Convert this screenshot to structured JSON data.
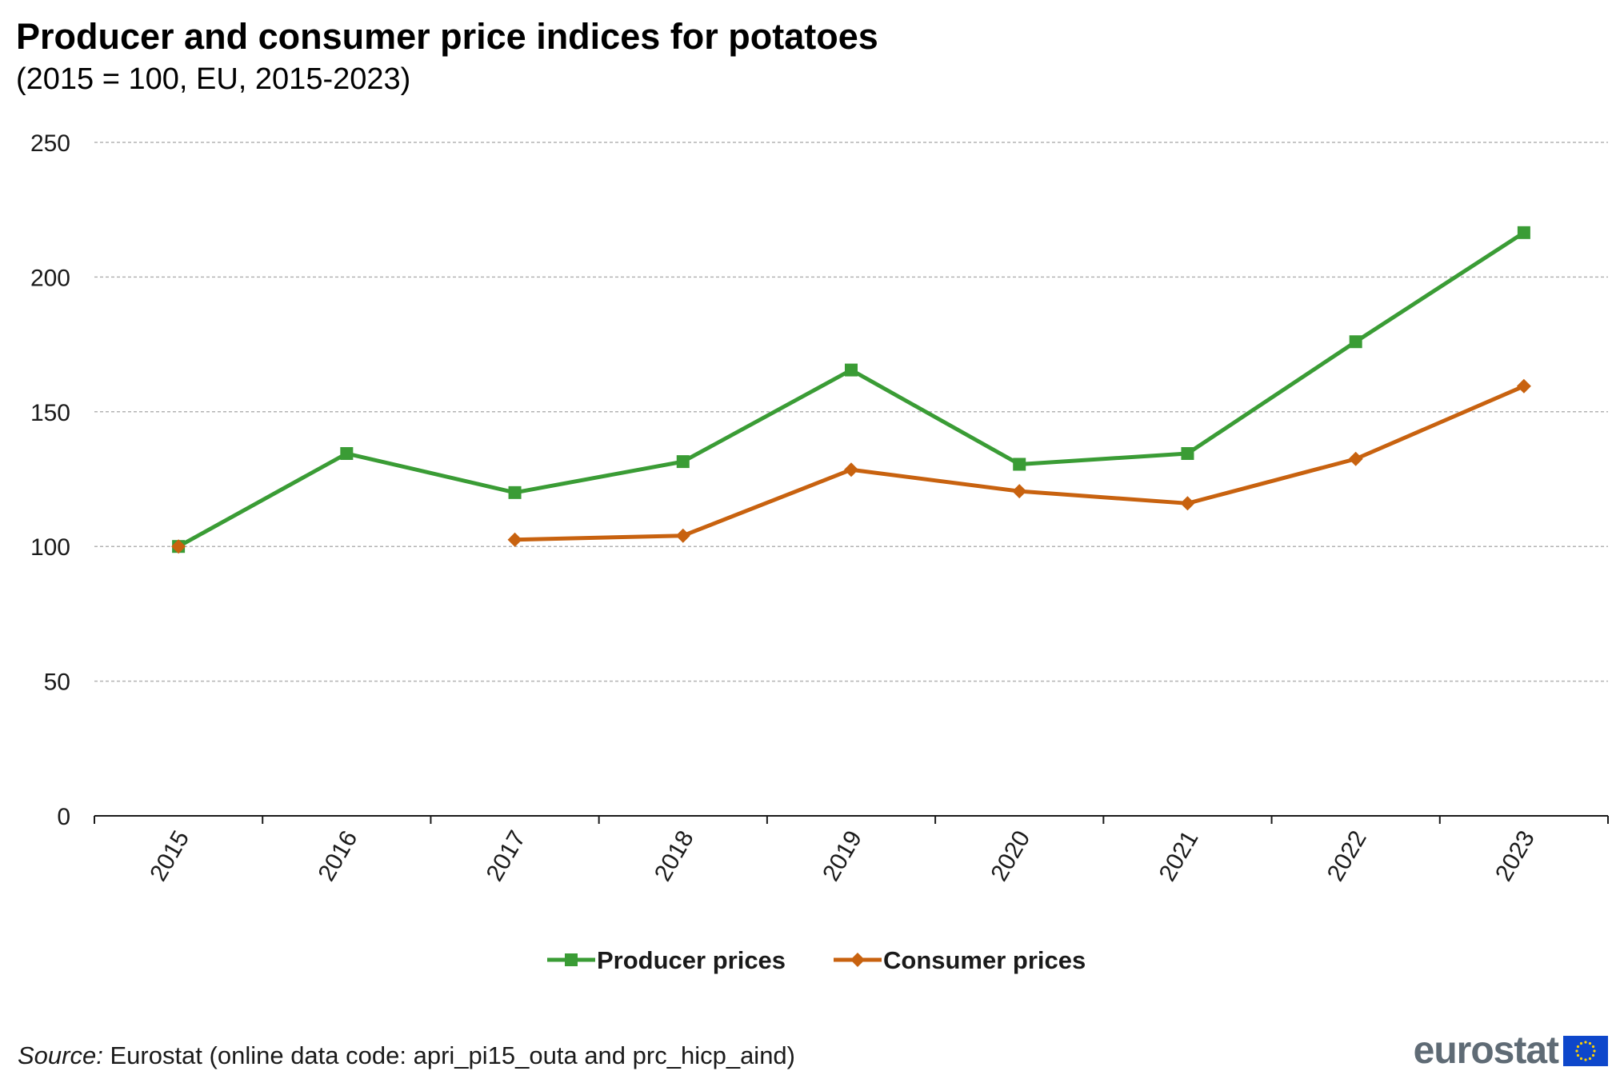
{
  "chart_data": {
    "type": "line",
    "title": "Producer and consumer price indices for potatoes",
    "subtitle": "(2015 = 100, EU, 2015-2023)",
    "categories": [
      "2015",
      "2016",
      "2017",
      "2018",
      "2019",
      "2020",
      "2021",
      "2022",
      "2023"
    ],
    "ylim": [
      0,
      250
    ],
    "yticks": [
      0,
      50,
      100,
      150,
      200,
      250
    ],
    "xlabel": "",
    "ylabel": "",
    "grid": true,
    "legend_position": "bottom",
    "series": [
      {
        "name": "Producer prices",
        "color": "#3a9c35",
        "marker": "square",
        "values": [
          100,
          134.5,
          120,
          131.5,
          165.5,
          130.5,
          134.5,
          176,
          216.5
        ]
      },
      {
        "name": "Consumer prices",
        "color": "#c8620f",
        "marker": "diamond",
        "values": [
          100,
          null,
          102.5,
          104,
          128.5,
          120.5,
          116,
          132.5,
          159.5
        ]
      }
    ]
  },
  "footer": {
    "source_label": "Source:",
    "source_text": " Eurostat (online data code: apri_pi15_outa and prc_hicp_aind)",
    "logo_text": "eurostat",
    "logo_text_color": "#5f6b75",
    "flag_color": "#0e47cb",
    "star_color": "#ffd200"
  }
}
